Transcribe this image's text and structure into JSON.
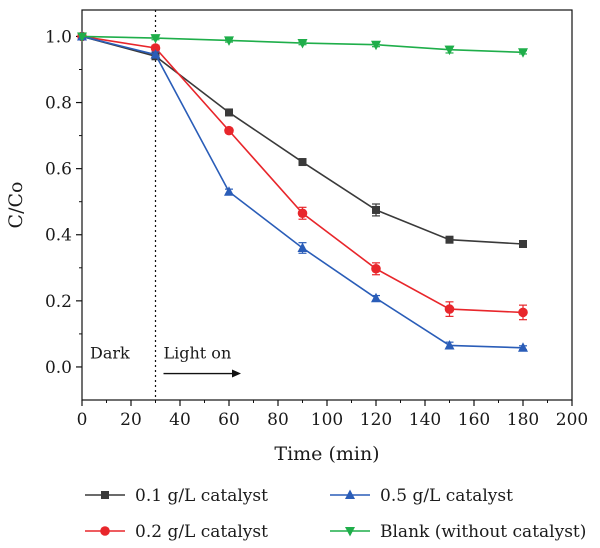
{
  "chart_data": {
    "type": "line",
    "xlabel": "Time (min)",
    "ylabel": "C/Co",
    "xlim": [
      0,
      200
    ],
    "ylim": [
      -0.1,
      1.08
    ],
    "xticks": [
      0,
      20,
      40,
      60,
      80,
      100,
      120,
      140,
      160,
      180,
      200
    ],
    "yticks": [
      0.0,
      0.2,
      0.4,
      0.6,
      0.8,
      1.0
    ],
    "xtick_labels": [
      "0",
      "20",
      "40",
      "60",
      "80",
      "100",
      "120",
      "140",
      "160",
      "180",
      "200"
    ],
    "ytick_labels": [
      "0.0",
      "0.2",
      "0.4",
      "0.6",
      "0.8",
      "1.0"
    ],
    "grid": false,
    "legend_position": "bottom",
    "divider_x": 30,
    "annotations": {
      "dark": "Dark",
      "light": "Light on"
    },
    "series": [
      {
        "name": "0.1 g/L catalyst",
        "color": "#3a3a3a",
        "marker": "square",
        "x": [
          0,
          30,
          60,
          90,
          120,
          150,
          180
        ],
        "y": [
          1.0,
          0.94,
          0.77,
          0.62,
          0.475,
          0.385,
          0.372
        ],
        "err": [
          0,
          0.008,
          0.006,
          0.008,
          0.018,
          0.007,
          0.006
        ]
      },
      {
        "name": "0.2 g/L catalyst",
        "color": "#e8262b",
        "marker": "circle",
        "x": [
          0,
          30,
          60,
          90,
          120,
          150,
          180
        ],
        "y": [
          1.0,
          0.965,
          0.715,
          0.465,
          0.297,
          0.175,
          0.165
        ],
        "err": [
          0,
          0.008,
          0.007,
          0.018,
          0.018,
          0.022,
          0.022
        ]
      },
      {
        "name": "0.5 g/L catalyst",
        "color": "#2a5db8",
        "marker": "triangle-up",
        "x": [
          0,
          30,
          60,
          90,
          120,
          150,
          180
        ],
        "y": [
          1.0,
          0.945,
          0.53,
          0.36,
          0.208,
          0.065,
          0.058
        ],
        "err": [
          0,
          0.008,
          0.008,
          0.016,
          0.008,
          0.01,
          0.006
        ]
      },
      {
        "name": "Blank (without catalyst)",
        "color": "#1fae4a",
        "marker": "triangle-down",
        "x": [
          0,
          30,
          60,
          90,
          120,
          150,
          180
        ],
        "y": [
          1.0,
          0.995,
          0.988,
          0.98,
          0.975,
          0.96,
          0.952
        ],
        "err": [
          0,
          0.005,
          0.005,
          0.005,
          0.006,
          0.01,
          0.005
        ]
      }
    ]
  }
}
